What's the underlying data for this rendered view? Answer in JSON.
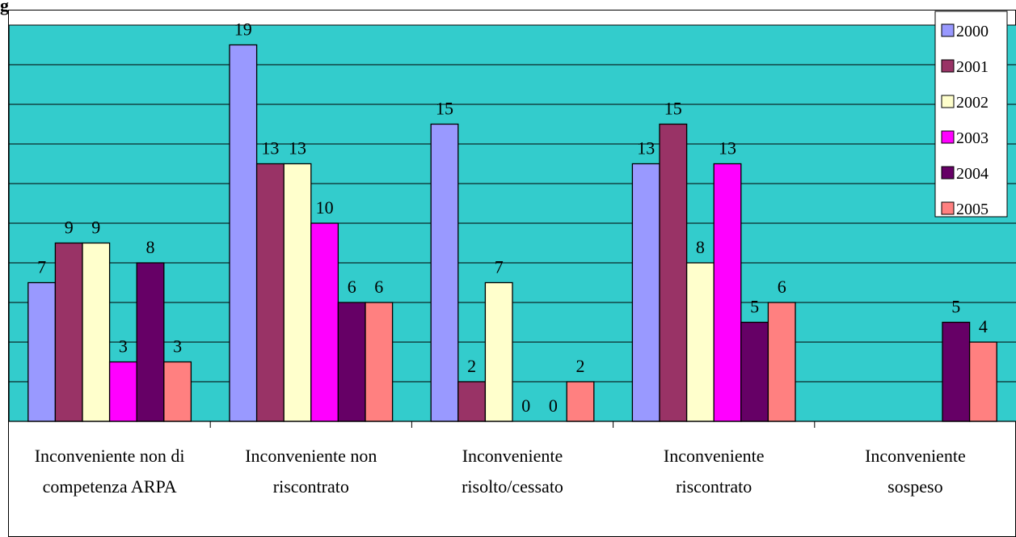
{
  "corner_text": "g",
  "chart_data": {
    "type": "bar",
    "categories": [
      [
        "Inconveniente non di",
        "competenza ARPA"
      ],
      [
        "Inconveniente non",
        "riscontrato"
      ],
      [
        "Inconveniente",
        "risolto/cessato"
      ],
      [
        "Inconveniente",
        "riscontrato"
      ],
      [
        "Inconveniente",
        "sospeso"
      ]
    ],
    "series": [
      {
        "name": "2000",
        "color": "#9999ff",
        "values": [
          7,
          19,
          15,
          13,
          null
        ]
      },
      {
        "name": "2001",
        "color": "#993366",
        "values": [
          9,
          13,
          2,
          15,
          null
        ]
      },
      {
        "name": "2002",
        "color": "#ffffcc",
        "values": [
          9,
          13,
          7,
          8,
          null
        ]
      },
      {
        "name": "2003",
        "color": "#ff00ff",
        "values": [
          3,
          10,
          0,
          13,
          null
        ]
      },
      {
        "name": "2004",
        "color": "#660066",
        "values": [
          8,
          6,
          0,
          5,
          5
        ]
      },
      {
        "name": "2005",
        "color": "#ff8080",
        "values": [
          3,
          6,
          2,
          6,
          4
        ]
      }
    ],
    "ylim": [
      0,
      20
    ],
    "grid": true,
    "plot_background": "#33cccc",
    "legend": "top-right",
    "title": "",
    "xlabel": "",
    "ylabel": ""
  }
}
